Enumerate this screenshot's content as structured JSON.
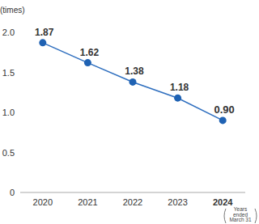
{
  "chart_data": {
    "type": "line",
    "y_label": "(times)",
    "categories": [
      "2020",
      "2021",
      "2022",
      "2023",
      "2024"
    ],
    "values": [
      1.87,
      1.62,
      1.38,
      1.18,
      0.9
    ],
    "value_labels": [
      "1.87",
      "1.62",
      "1.38",
      "1.18",
      "0.90"
    ],
    "color": "#2f6fbf",
    "marker": "circle",
    "ylim": [
      0,
      2
    ],
    "yticks": [
      0,
      0.5,
      {
        "value": 1,
        "label": "1.0"
      },
      1.5,
      {
        "value": 2,
        "label": "2.0"
      }
    ],
    "grid": false,
    "data_labels": true,
    "annotations": [
      "Years",
      "ended",
      "March 31"
    ]
  }
}
